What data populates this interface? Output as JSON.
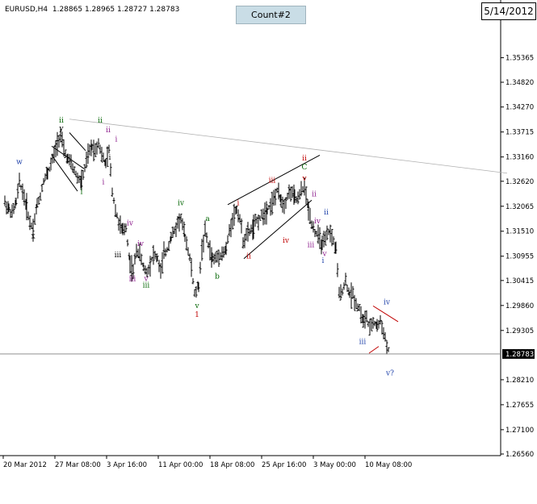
{
  "header": {
    "symbol": "EURUSD,H4",
    "quotes": "1.28865 1.28965 1.28727 1.28783"
  },
  "count_label": "Count#2",
  "date_label": "5/14/2012",
  "colors": {
    "black": "#000000",
    "green": "#006400",
    "red": "#c00000",
    "blue": "#1c3fa8",
    "purple": "#8b1a8b",
    "current_line": "#7f7f7f"
  },
  "chart_data": {
    "type": "bar",
    "instrument": "EURUSD,H4",
    "ylim": [
      1.2656,
      1.3611
    ],
    "current_price": 1.28783,
    "y_ticks": [
      "1.35365",
      "1.34820",
      "1.34270",
      "1.33715",
      "1.33160",
      "1.32620",
      "1.32065",
      "1.31510",
      "1.30955",
      "1.30415",
      "1.29860",
      "1.29305",
      "1.28210",
      "1.27655",
      "1.27100",
      "1.26560"
    ],
    "x_ticks": [
      "20 Mar 2012",
      "27 Mar 08:00",
      "3 Apr 16:00",
      "11 Apr 00:00",
      "18 Apr 08:00",
      "25 Apr 16:00",
      "3 May 00:00",
      "10 May 08:00"
    ],
    "price_path": [
      [
        0,
        1.3215
      ],
      [
        5,
        1.32
      ],
      [
        9,
        1.319
      ],
      [
        14,
        1.3215
      ],
      [
        18,
        1.326
      ],
      [
        22,
        1.324
      ],
      [
        27,
        1.3205
      ],
      [
        31,
        1.317
      ],
      [
        35,
        1.3158
      ],
      [
        40,
        1.321
      ],
      [
        44,
        1.323
      ],
      [
        48,
        1.3265
      ],
      [
        53,
        1.328
      ],
      [
        57,
        1.33
      ],
      [
        61,
        1.332
      ],
      [
        65,
        1.335
      ],
      [
        69,
        1.3365
      ],
      [
        73,
        1.333
      ],
      [
        78,
        1.331
      ],
      [
        82,
        1.33
      ],
      [
        86,
        1.3285
      ],
      [
        90,
        1.327
      ],
      [
        95,
        1.326
      ],
      [
        99,
        1.329
      ],
      [
        103,
        1.332
      ],
      [
        108,
        1.334
      ],
      [
        112,
        1.333
      ],
      [
        116,
        1.335
      ],
      [
        120,
        1.332
      ],
      [
        125,
        1.33
      ],
      [
        129,
        1.333
      ],
      [
        133,
        1.324
      ],
      [
        137,
        1.32
      ],
      [
        141,
        1.317
      ],
      [
        146,
        1.315
      ],
      [
        150,
        1.316
      ],
      [
        155,
        1.308
      ],
      [
        159,
        1.306
      ],
      [
        163,
        1.311
      ],
      [
        167,
        1.31
      ],
      [
        172,
        1.307
      ],
      [
        176,
        1.306
      ],
      [
        180,
        1.308
      ],
      [
        184,
        1.31
      ],
      [
        189,
        1.309
      ],
      [
        193,
        1.306
      ],
      [
        197,
        1.31
      ],
      [
        201,
        1.311
      ],
      [
        206,
        1.314
      ],
      [
        210,
        1.315
      ],
      [
        214,
        1.317
      ],
      [
        218,
        1.318
      ],
      [
        223,
        1.314
      ],
      [
        227,
        1.311
      ],
      [
        231,
        1.307
      ],
      [
        235,
        1.301
      ],
      [
        240,
        1.303
      ],
      [
        244,
        1.311
      ],
      [
        248,
        1.315
      ],
      [
        252,
        1.312
      ],
      [
        257,
        1.309
      ],
      [
        261,
        1.309
      ],
      [
        265,
        1.31
      ],
      [
        269,
        1.31
      ],
      [
        274,
        1.311
      ],
      [
        278,
        1.315
      ],
      [
        282,
        1.318
      ],
      [
        287,
        1.32
      ],
      [
        291,
        1.318
      ],
      [
        295,
        1.313
      ],
      [
        299,
        1.314
      ],
      [
        303,
        1.315
      ],
      [
        308,
        1.316
      ],
      [
        312,
        1.3175
      ],
      [
        316,
        1.318
      ],
      [
        320,
        1.319
      ],
      [
        325,
        1.32
      ],
      [
        329,
        1.321
      ],
      [
        333,
        1.322
      ],
      [
        337,
        1.324
      ],
      [
        342,
        1.322
      ],
      [
        346,
        1.321
      ],
      [
        350,
        1.323
      ],
      [
        354,
        1.324
      ],
      [
        359,
        1.3225
      ],
      [
        363,
        1.322
      ],
      [
        367,
        1.324
      ],
      [
        371,
        1.325
      ],
      [
        376,
        1.32
      ],
      [
        380,
        1.317
      ],
      [
        384,
        1.315
      ],
      [
        388,
        1.314
      ],
      [
        393,
        1.312
      ],
      [
        397,
        1.313
      ],
      [
        401,
        1.315
      ],
      [
        405,
        1.314
      ],
      [
        410,
        1.311
      ],
      [
        414,
        1.301
      ],
      [
        418,
        1.302
      ],
      [
        422,
        1.304
      ],
      [
        427,
        1.301
      ],
      [
        431,
        1.301
      ],
      [
        435,
        1.299
      ],
      [
        439,
        1.298
      ],
      [
        444,
        1.295
      ],
      [
        448,
        1.296
      ],
      [
        452,
        1.293
      ],
      [
        456,
        1.295
      ],
      [
        461,
        1.294
      ],
      [
        465,
        1.295
      ],
      [
        469,
        1.293
      ],
      [
        473,
        1.2895
      ],
      [
        477,
        1.288
      ]
    ],
    "wave_labels": [
      {
        "text": "w",
        "color": "blue",
        "t": 18,
        "p": 1.33,
        "dy": 0
      },
      {
        "text": "x",
        "color": "black",
        "t": 35,
        "p": 1.315,
        "dy": 8
      },
      {
        "text": "ii",
        "color": "green",
        "t": 70,
        "p": 1.3389,
        "dy": -2
      },
      {
        "text": "y",
        "color": "black",
        "t": 70,
        "p": 1.3389,
        "dy": 8
      },
      {
        "text": "i",
        "color": "green",
        "t": 95,
        "p": 1.3248,
        "dy": 8
      },
      {
        "text": "ii",
        "color": "green",
        "t": 118,
        "p": 1.3389,
        "dy": -2
      },
      {
        "text": "ii",
        "color": "purple",
        "t": 128,
        "p": 1.3367,
        "dy": -2
      },
      {
        "text": "i",
        "color": "purple",
        "t": 122,
        "p": 1.327,
        "dy": 8
      },
      {
        "text": "i",
        "color": "purple",
        "t": 138,
        "p": 1.335,
        "dy": 0
      },
      {
        "text": "i",
        "color": "black",
        "t": 130,
        "p": 1.331,
        "dy": 0
      },
      {
        "text": "iv",
        "color": "purple",
        "t": 155,
        "p": 1.316,
        "dy": -2
      },
      {
        "text": "iii",
        "color": "black",
        "t": 140,
        "p": 1.31,
        "dy": 4
      },
      {
        "text": "iv",
        "color": "purple",
        "t": 168,
        "p": 1.3115,
        "dy": -2
      },
      {
        "text": "iii",
        "color": "purple",
        "t": 158,
        "p": 1.3055,
        "dy": 8
      },
      {
        "text": "v",
        "color": "purple",
        "t": 175,
        "p": 1.3055,
        "dy": 8
      },
      {
        "text": "iii",
        "color": "green",
        "t": 175,
        "p": 1.304,
        "dy": 8
      },
      {
        "text": "iv",
        "color": "green",
        "t": 218,
        "p": 1.3205,
        "dy": -2
      },
      {
        "text": "v",
        "color": "green",
        "t": 238,
        "p": 1.2995,
        "dy": 8
      },
      {
        "text": "1",
        "color": "red",
        "t": 238,
        "p": 1.2975,
        "dy": 8
      },
      {
        "text": "a",
        "color": "green",
        "t": 251,
        "p": 1.317,
        "dy": -2
      },
      {
        "text": "b",
        "color": "green",
        "t": 263,
        "p": 1.306,
        "dy": 8
      },
      {
        "text": "i",
        "color": "red",
        "t": 289,
        "p": 1.3205,
        "dy": -2
      },
      {
        "text": "ii",
        "color": "red",
        "t": 302,
        "p": 1.3105,
        "dy": 8
      },
      {
        "text": "iii",
        "color": "red",
        "t": 331,
        "p": 1.3255,
        "dy": -2
      },
      {
        "text": "iv",
        "color": "red",
        "t": 348,
        "p": 1.314,
        "dy": 8
      },
      {
        "text": "ii",
        "color": "red",
        "t": 371,
        "p": 1.3305,
        "dy": -2
      },
      {
        "text": "C",
        "color": "green",
        "t": 371,
        "p": 1.3285,
        "dy": -2
      },
      {
        "text": "v",
        "color": "red",
        "t": 371,
        "p": 1.326,
        "dy": -2
      },
      {
        "text": "ii",
        "color": "purple",
        "t": 383,
        "p": 1.3225,
        "dy": -2
      },
      {
        "text": "iv",
        "color": "purple",
        "t": 387,
        "p": 1.3165,
        "dy": -2
      },
      {
        "text": "iii",
        "color": "purple",
        "t": 379,
        "p": 1.313,
        "dy": 8
      },
      {
        "text": "ii",
        "color": "blue",
        "t": 398,
        "p": 1.3185,
        "dy": -2
      },
      {
        "text": "v",
        "color": "purple",
        "t": 396,
        "p": 1.311,
        "dy": 8
      },
      {
        "text": "i",
        "color": "blue",
        "t": 394,
        "p": 1.3095,
        "dy": 8
      },
      {
        "text": "iv",
        "color": "blue",
        "t": 473,
        "p": 1.2985,
        "dy": -2
      },
      {
        "text": "iii",
        "color": "blue",
        "t": 443,
        "p": 1.2915,
        "dy": 8
      },
      {
        "text": "v?",
        "color": "blue",
        "t": 477,
        "p": 1.2845,
        "dy": 8
      }
    ]
  }
}
